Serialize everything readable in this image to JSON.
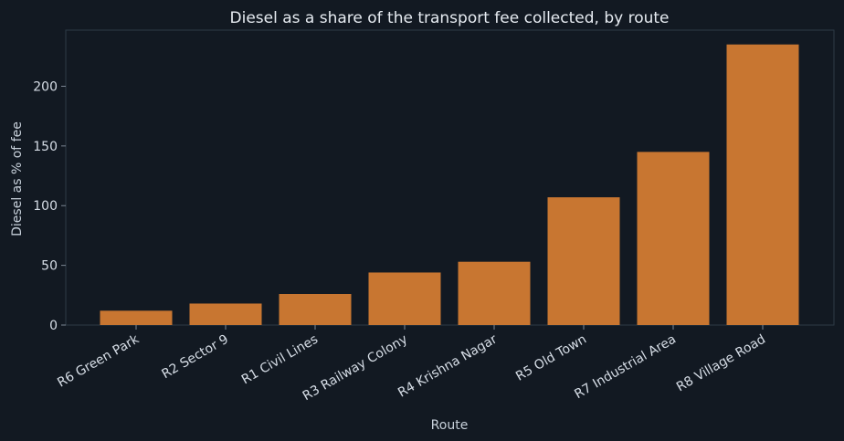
{
  "chart_data": {
    "type": "bar",
    "title": "Diesel as a share of the transport fee collected, by route",
    "xlabel": "Route",
    "ylabel": "Diesel as % of fee",
    "categories": [
      "R6 Green Park",
      "R2 Sector 9",
      "R1 Civil Lines",
      "R3 Railway Colony",
      "R4 Krishna Nagar",
      "R5 Old Town",
      "R7 Industrial Area",
      "R8 Village Road"
    ],
    "values": [
      12,
      18,
      26,
      44,
      53,
      107,
      145,
      235
    ],
    "yticks": [
      0,
      50,
      100,
      150,
      200
    ],
    "ylim": [
      0,
      247
    ],
    "grid": false,
    "legend": "none",
    "bar_color": "#c87631"
  }
}
